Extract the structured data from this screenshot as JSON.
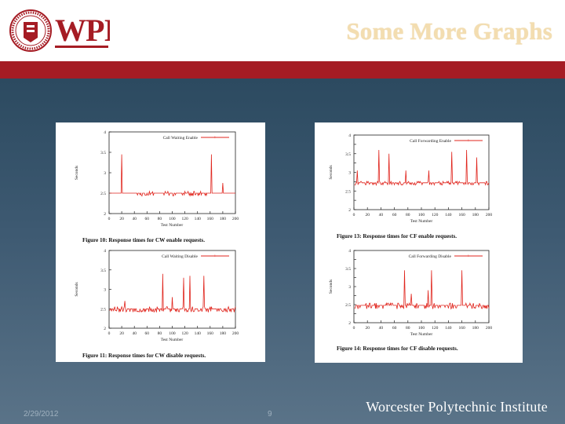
{
  "header": {
    "logo_text": "WPI",
    "seal_text": "WORCESTER POLYTECHNIC INSTITUTE 1865",
    "title": "Some More Graphs"
  },
  "footer": {
    "date": "2/29/2012",
    "page_number": "9",
    "institution": "Worcester Polytechnic Institute"
  },
  "colors": {
    "accent_red": "#a51c24",
    "title_gold": "#f3ddb0",
    "series_red": "#e0241c"
  },
  "chart_data": [
    {
      "type": "line",
      "caption": "Figure 10: Response times for CW enable requests.",
      "legend": "Call Waiting Enable",
      "xlabel": "Test Number",
      "ylabel": "Seconds",
      "xlim": [
        0,
        200
      ],
      "ylim": [
        2,
        4
      ],
      "xticks": [
        0,
        20,
        40,
        60,
        80,
        100,
        120,
        140,
        160,
        180,
        200
      ],
      "yticks": [
        2,
        2.5,
        3,
        3.5,
        4
      ],
      "yticklabels": [
        "2",
        "2.5",
        "3",
        "3.5",
        "4"
      ],
      "baseline": 2.5,
      "noise": 0.07,
      "noise_range": [
        45,
        155
      ],
      "spikes": [
        [
          20,
          3.45
        ],
        [
          162,
          3.45
        ],
        [
          180,
          2.75
        ]
      ]
    },
    {
      "type": "line",
      "caption": "Figure 11: Response times for CW disable requests.",
      "legend": "Call Waiting Disable",
      "xlabel": "Test Number",
      "ylabel": "Seconds",
      "xlim": [
        0,
        200
      ],
      "ylim": [
        2,
        4
      ],
      "xticks": [
        0,
        20,
        40,
        60,
        80,
        100,
        120,
        140,
        160,
        180,
        200
      ],
      "yticks": [
        2,
        2.5,
        3,
        3.5,
        4
      ],
      "yticklabels": [
        "2",
        "2.5",
        "3",
        "3.5",
        "4"
      ],
      "baseline": 2.5,
      "noise": 0.09,
      "noise_range": [
        0,
        200
      ],
      "spikes": [
        [
          85,
          3.4
        ],
        [
          118,
          3.3
        ],
        [
          128,
          3.35
        ],
        [
          150,
          3.35
        ],
        [
          25,
          2.7
        ],
        [
          100,
          2.8
        ]
      ]
    },
    {
      "type": "line",
      "caption": "Figure 13: Response times for CF enable requests.",
      "legend": "Call Forwarding Enable",
      "xlabel": "Test Number",
      "ylabel": "Seconds",
      "xlim": [
        0,
        200
      ],
      "ylim": [
        2,
        4
      ],
      "xticks": [
        0,
        20,
        40,
        60,
        80,
        100,
        120,
        140,
        160,
        180,
        200
      ],
      "yticks": [
        2,
        2.25,
        2.5,
        2.75,
        3,
        3.25,
        3.5,
        3.75,
        4
      ],
      "yticklabels": [
        "2",
        "",
        "2.5",
        "",
        "3",
        "",
        "3.5",
        "",
        "4"
      ],
      "baseline": 2.72,
      "noise": 0.06,
      "noise_range": [
        0,
        200
      ],
      "spikes": [
        [
          5,
          3.05
        ],
        [
          37,
          3.6
        ],
        [
          52,
          3.5
        ],
        [
          77,
          3.05
        ],
        [
          111,
          3.05
        ],
        [
          145,
          3.55
        ],
        [
          167,
          3.6
        ],
        [
          182,
          3.4
        ]
      ]
    },
    {
      "type": "line",
      "caption": "Figure 14: Response times for CF disable requests.",
      "legend": "Call Forwarding Disable",
      "xlabel": "Test Number",
      "ylabel": "Seconds",
      "xlim": [
        0,
        200
      ],
      "ylim": [
        2,
        4
      ],
      "xticks": [
        0,
        20,
        40,
        60,
        80,
        100,
        120,
        140,
        160,
        180,
        200
      ],
      "yticks": [
        2,
        2.25,
        2.5,
        2.75,
        3,
        3.25,
        3.5,
        3.75,
        4
      ],
      "yticklabels": [
        "2",
        "",
        "2.5",
        "",
        "3",
        "",
        "3.5",
        "",
        "4"
      ],
      "baseline": 2.48,
      "noise": 0.1,
      "noise_range": [
        0,
        200
      ],
      "spikes": [
        [
          75,
          3.45
        ],
        [
          85,
          2.8
        ],
        [
          110,
          2.9
        ],
        [
          115,
          3.45
        ],
        [
          160,
          3.45
        ]
      ]
    }
  ]
}
